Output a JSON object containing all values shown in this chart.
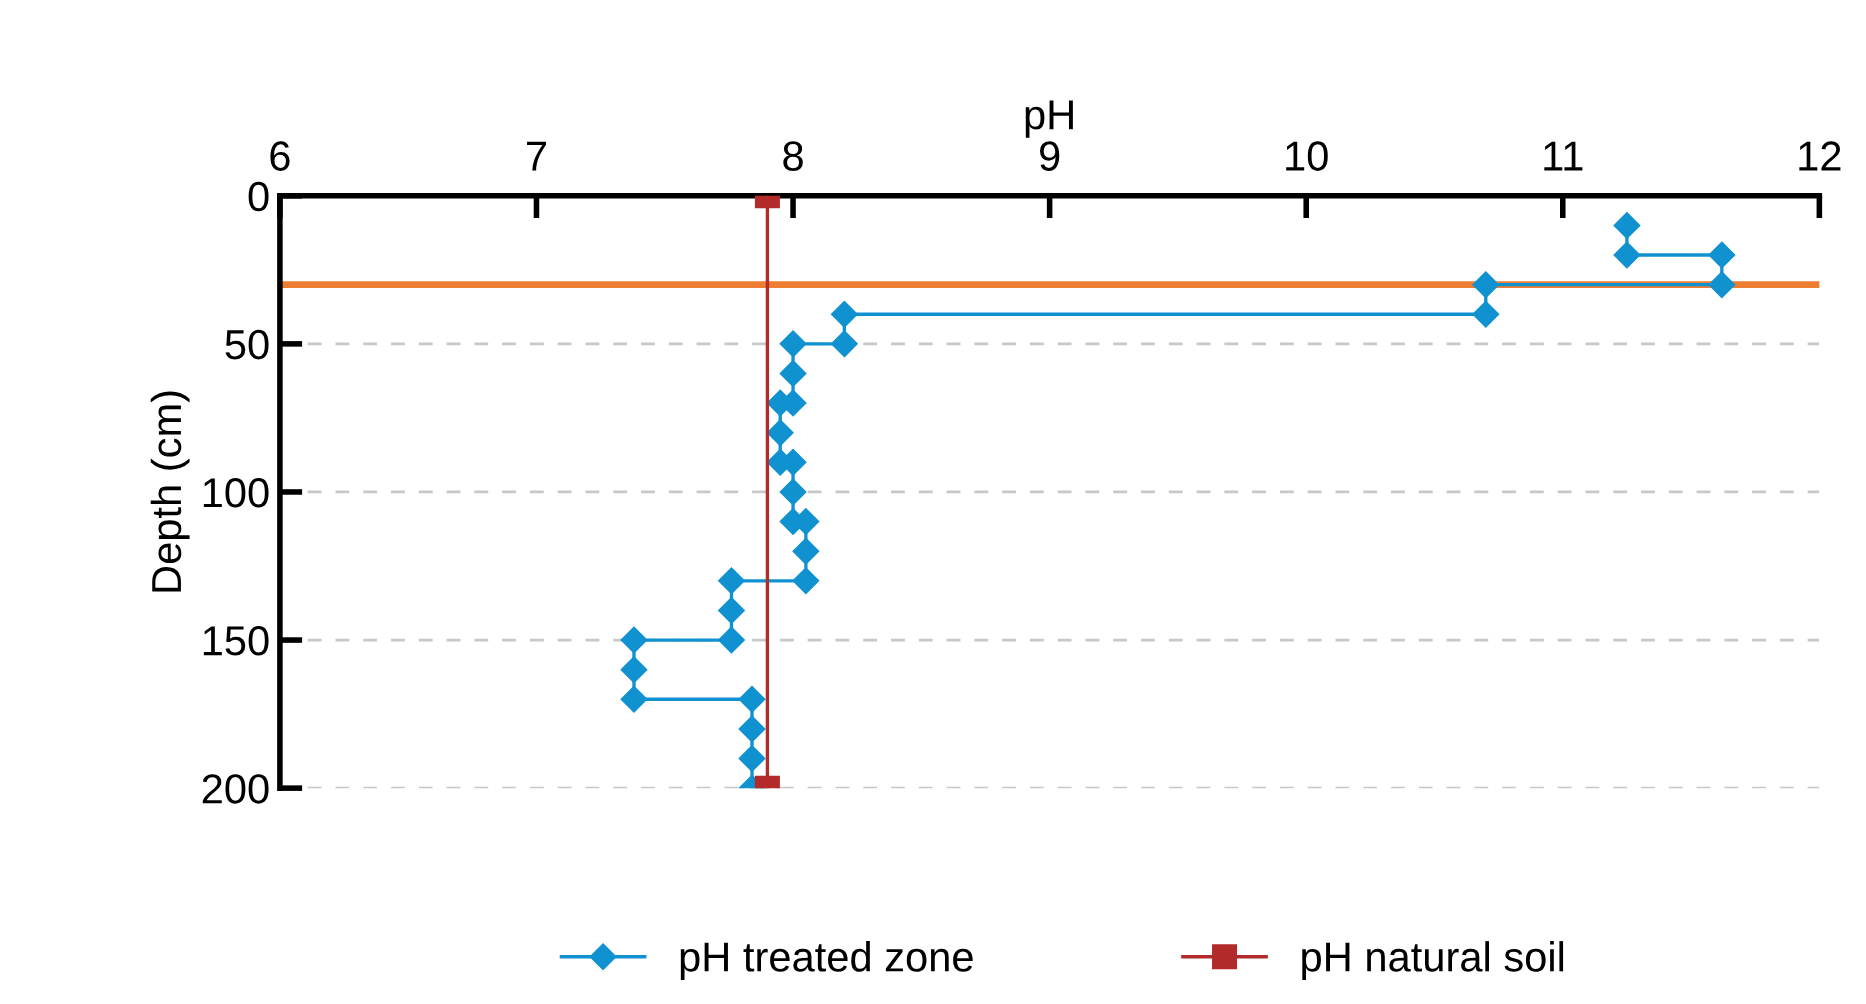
{
  "chart_data": {
    "type": "line",
    "xlabel": "pH",
    "ylabel": "Depth (cm)",
    "xlim": [
      6,
      12
    ],
    "xticks": [
      6,
      7,
      8,
      9,
      10,
      11,
      12
    ],
    "ylim": [
      200,
      0
    ],
    "yticks": [
      0,
      50,
      100,
      150,
      200
    ],
    "grid": "y",
    "legend": "bottom",
    "series": [
      {
        "name": "pH treated zone",
        "color": "#1192d0",
        "marker": "diamond",
        "x": [
          11.25,
          11.25,
          11.62,
          11.62,
          10.7,
          10.7,
          8.2,
          8.2,
          8.0,
          8.0,
          8.0,
          7.95,
          7.95,
          7.95,
          8.0,
          8.0,
          8.0,
          8.05,
          8.05,
          8.05,
          7.76,
          7.76,
          7.76,
          7.38,
          7.38,
          7.38,
          7.84,
          7.84,
          7.84,
          7.84
        ],
        "values": [
          10,
          20,
          20,
          30,
          30,
          40,
          40,
          50,
          50,
          60,
          70,
          70,
          80,
          90,
          90,
          100,
          110,
          110,
          120,
          130,
          130,
          140,
          150,
          150,
          160,
          170,
          170,
          180,
          190,
          200
        ]
      },
      {
        "name": "pH natural soil",
        "color": "#b22a2a",
        "marker": "square",
        "x": [
          7.9,
          7.9
        ],
        "values": [
          0,
          200
        ]
      }
    ],
    "ref_lines": [
      {
        "axis": "y",
        "value": 30,
        "color": "#ed7d31"
      }
    ]
  }
}
